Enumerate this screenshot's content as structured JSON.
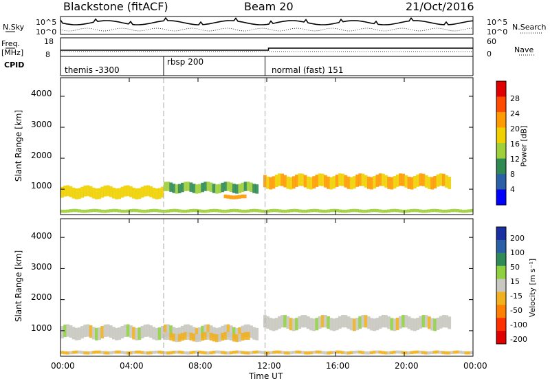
{
  "header": {
    "station": "Blackstone (fitACF)",
    "beam": "Beam 20",
    "date": "21/Oct/2016"
  },
  "top_panel_labels": {
    "nsky": "N.Sky",
    "nsky_hi": "10^5",
    "nsky_lo": "10^0",
    "nsearch": "N.Search",
    "nsearch_hi": "10^5",
    "nsearch_lo": "10^0",
    "freq": "Freq.",
    "freq_unit": "[MHz]",
    "freq_hi": "18",
    "freq_lo": "8",
    "nave": "Nave",
    "nave_hi": "60",
    "nave_lo": "0",
    "cpid": "CPID"
  },
  "cpid_segments": [
    {
      "label": "themis -3300"
    },
    {
      "label": "rbsp 200"
    },
    {
      "label": "normal (fast) 151"
    }
  ],
  "x_axis": {
    "label": "Time UT",
    "ticks": [
      "00:00",
      "04:00",
      "08:00",
      "12:00",
      "16:00",
      "20:00",
      "00:00"
    ]
  },
  "y_axis": {
    "label": "Slant Range [km]",
    "ticks": [
      "1000",
      "2000",
      "3000",
      "4000"
    ]
  },
  "power_colorbar": {
    "label": "Power [dB]",
    "ticks": [
      "4",
      "8",
      "12",
      "16",
      "20",
      "24",
      "28"
    ],
    "colors": [
      "#0000ff",
      "#2b5fa6",
      "#2f8a52",
      "#9fcf3a",
      "#f0d000",
      "#ff9a00",
      "#ff4a00",
      "#e00000"
    ]
  },
  "velocity_colorbar": {
    "label": "Velocity [m s⁻¹]",
    "ticks": [
      "200",
      "100",
      "50",
      "15",
      "-15",
      "-50",
      "-100",
      "-200"
    ],
    "colors": [
      "#1a2fa0",
      "#2a5fa6",
      "#2e8b57",
      "#8fd040",
      "#c8c8c0",
      "#f0b020",
      "#ff8000",
      "#ff3000",
      "#e00000"
    ]
  },
  "chart_data": [
    {
      "type": "heatmap",
      "title": "",
      "xlabel": "Time UT",
      "ylabel": "Slant Range [km]",
      "xlim": [
        0,
        24
      ],
      "ylim": [
        180,
        4600
      ],
      "colorbar": "Power [dB]",
      "clim": [
        0,
        32
      ],
      "bands": [
        {
          "t0": 0.0,
          "t1": 6.0,
          "r_center": 900,
          "r_width": 350,
          "value": 18
        },
        {
          "t0": 6.0,
          "t1": 11.5,
          "r_center": 1050,
          "r_width": 300,
          "value": 12
        },
        {
          "t0": 9.5,
          "t1": 10.8,
          "r_center": 750,
          "r_width": 120,
          "value": 22
        },
        {
          "t0": 11.8,
          "t1": 22.7,
          "r_center": 1250,
          "r_width": 400,
          "value": 20
        },
        {
          "t0": 0.0,
          "t1": 24.0,
          "r_center": 300,
          "r_width": 100,
          "value": 14
        }
      ]
    },
    {
      "type": "heatmap",
      "title": "",
      "xlabel": "Time UT",
      "ylabel": "Slant Range [km]",
      "xlim": [
        0,
        24
      ],
      "ylim": [
        180,
        4600
      ],
      "colorbar": "Velocity [m s⁻¹]",
      "clim": [
        -250,
        250
      ],
      "bands": [
        {
          "t0": 0.0,
          "t1": 11.5,
          "r_center": 950,
          "r_width": 400,
          "value": 0
        },
        {
          "t0": 6.0,
          "t1": 11.0,
          "r_center": 800,
          "r_width": 250,
          "value": -40
        },
        {
          "t0": 11.8,
          "t1": 22.7,
          "r_center": 1250,
          "r_width": 400,
          "value": 0
        },
        {
          "t0": 0.0,
          "t1": 24.0,
          "r_center": 300,
          "r_width": 100,
          "value": -40
        }
      ]
    }
  ],
  "cpid_boundaries_hours": [
    6.0,
    11.9
  ]
}
